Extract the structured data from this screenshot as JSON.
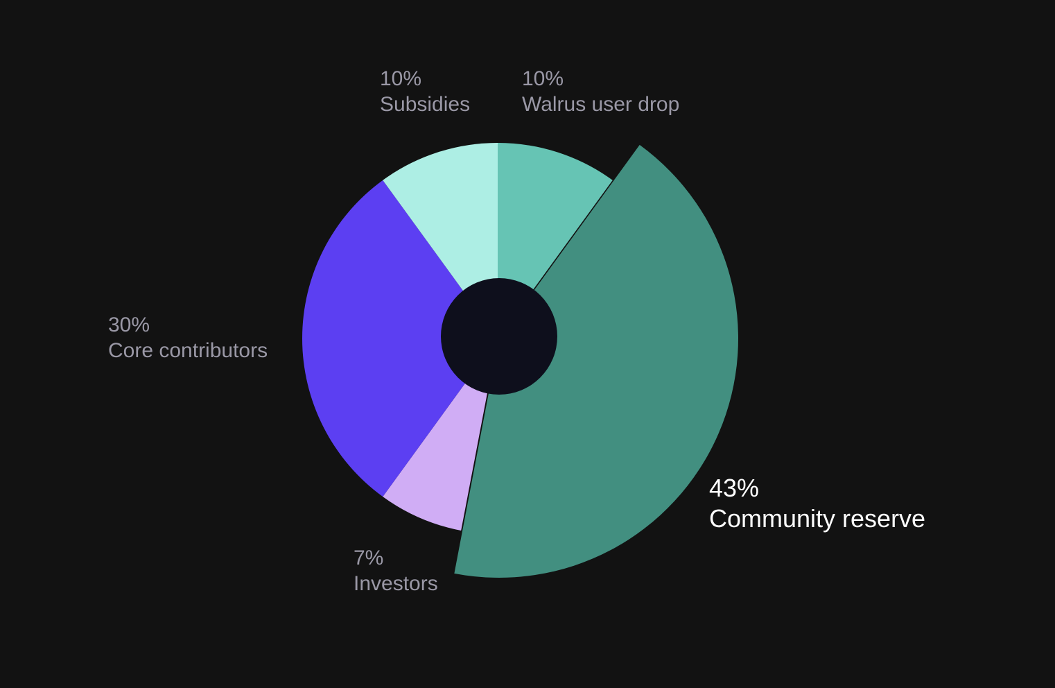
{
  "chart_data": {
    "type": "pie",
    "variant": "donut",
    "background_color": "#121212",
    "center_color": "#0e0f1c",
    "highlighted_slice": "Community reserve",
    "slices": [
      {
        "label": "Walrus user drop",
        "value": 10,
        "value_label": "10%",
        "color": "#66c4b4"
      },
      {
        "label": "Community reserve",
        "value": 43,
        "value_label": "43%",
        "color": "#428f80"
      },
      {
        "label": "Investors",
        "value": 7,
        "value_label": "7%",
        "color": "#d0adf5"
      },
      {
        "label": "Core contributors",
        "value": 30,
        "value_label": "30%",
        "color": "#5c3ff2"
      },
      {
        "label": "Subsidies",
        "value": 10,
        "value_label": "10%",
        "color": "#adeee4"
      }
    ]
  }
}
